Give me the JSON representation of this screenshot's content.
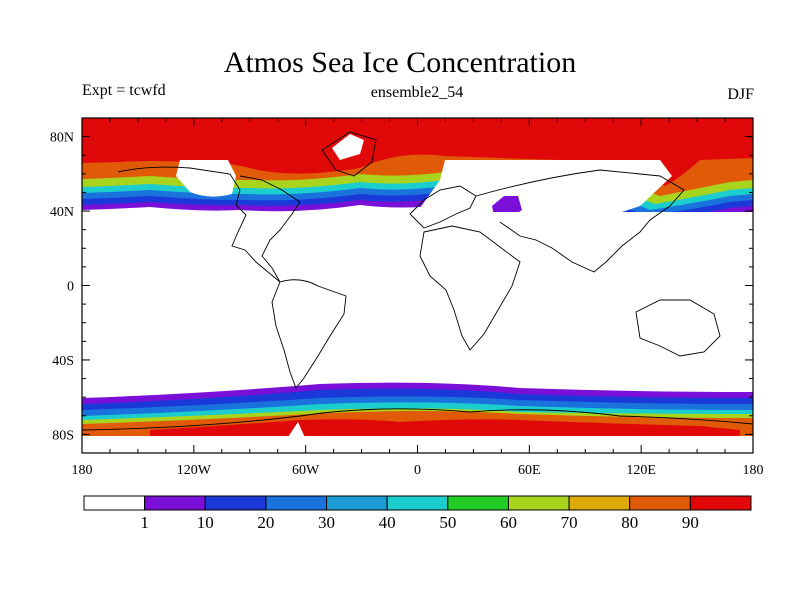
{
  "title": "Atmos Sea Ice Concentration",
  "experiment_label": "Expt = tcwfd",
  "subtitle": "ensemble2_54",
  "season": "DJF",
  "map": {
    "projection": "cylindrical equidistant",
    "lon_range": [
      -180,
      180
    ],
    "lat_range": [
      -90,
      90
    ],
    "lon_ticks": [
      {
        "value": -180,
        "label": "180"
      },
      {
        "value": -120,
        "label": "120W"
      },
      {
        "value": -60,
        "label": "60W"
      },
      {
        "value": 0,
        "label": "0"
      },
      {
        "value": 60,
        "label": "60E"
      },
      {
        "value": 120,
        "label": "120E"
      },
      {
        "value": 180,
        "label": "180"
      }
    ],
    "lat_ticks": [
      {
        "value": 80,
        "label": "80N"
      },
      {
        "value": 40,
        "label": "40N"
      },
      {
        "value": 0,
        "label": "0"
      },
      {
        "value": -40,
        "label": "40S"
      },
      {
        "value": -80,
        "label": "80S"
      }
    ]
  },
  "colorbar": {
    "levels": [
      1,
      10,
      20,
      30,
      40,
      50,
      60,
      70,
      80,
      90
    ],
    "colors": [
      "#ffffff",
      "#7a10d8",
      "#1b38d9",
      "#1a72dd",
      "#1c9ad2",
      "#1ccdcd",
      "#24cc26",
      "#a9d41e",
      "#ddaa0a",
      "#e05a08",
      "#e00808"
    ]
  }
}
